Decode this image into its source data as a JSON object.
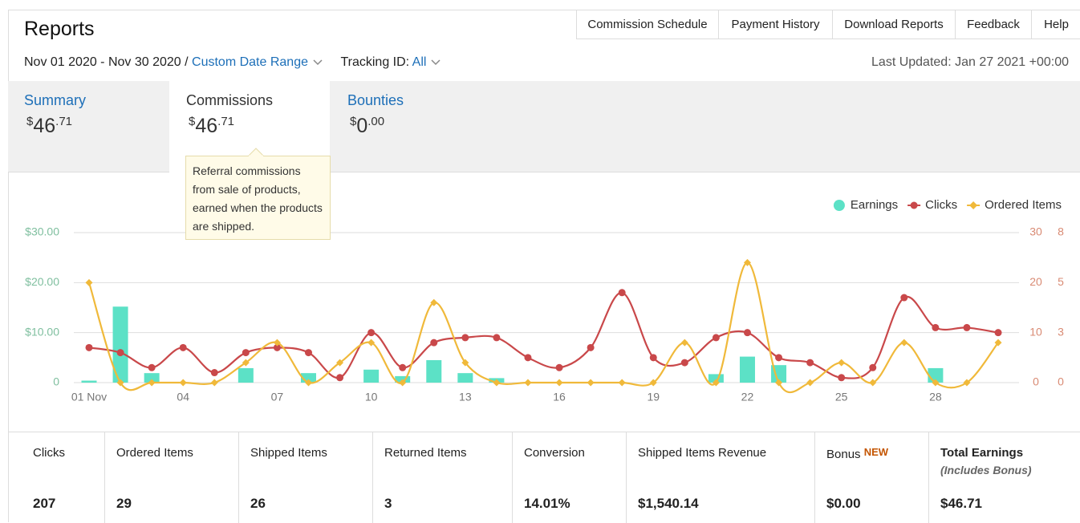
{
  "header": {
    "title": "Reports",
    "nav": [
      "Commission Schedule",
      "Payment History",
      "Download Reports",
      "Feedback",
      "Help"
    ],
    "date_range": "Nov 01 2020 - Nov 30 2020 /",
    "custom_range": "Custom Date Range",
    "tracking_label": "Tracking ID:",
    "tracking_value": "All",
    "last_updated": "Last Updated: Jan 27 2021 +00:00"
  },
  "tabs": [
    {
      "name": "Summary",
      "currency": "$",
      "whole": "46",
      "fraction": ".71"
    },
    {
      "name": "Commissions",
      "currency": "$",
      "whole": "46",
      "fraction": ".71"
    },
    {
      "name": "Bounties",
      "currency": "$",
      "whole": "0",
      "fraction": ".00"
    }
  ],
  "tooltip": "Referral commissions from sale of products, earned when the products are shipped.",
  "chart_data": {
    "type": "line",
    "categories": [
      "01 Nov",
      null,
      null,
      "04",
      null,
      null,
      "07",
      null,
      null,
      "10",
      null,
      null,
      "13",
      null,
      null,
      "16",
      null,
      null,
      "19",
      null,
      null,
      "22",
      null,
      null,
      "25",
      null,
      null,
      "28",
      null,
      null
    ],
    "series": [
      {
        "name": "Earnings",
        "type": "bar",
        "axis": "y",
        "color": "#5ce1c6",
        "marker": "circle",
        "values": [
          0.4,
          15.2,
          1.9,
          0,
          0,
          2.9,
          0,
          1.9,
          0,
          2.6,
          1.3,
          4.5,
          1.9,
          0.9,
          0,
          0,
          0,
          0,
          0,
          0,
          1.7,
          5.2,
          3.5,
          0,
          0,
          0,
          0,
          2.9,
          0,
          0
        ]
      },
      {
        "name": "Clicks",
        "type": "line",
        "axis": "y2",
        "color": "#c9484a",
        "marker": "circle",
        "values": [
          7,
          6,
          3,
          7,
          2,
          6,
          7,
          6,
          1,
          10,
          3,
          8,
          9,
          9,
          5,
          3,
          7,
          18,
          5,
          4,
          9,
          10,
          5,
          4,
          1,
          3,
          17,
          11,
          11,
          10
        ]
      },
      {
        "name": "Ordered Items",
        "type": "line",
        "axis": "y3",
        "color": "#f0b93a",
        "marker": "diamond",
        "values": [
          5,
          0,
          0,
          0,
          0,
          1,
          2,
          0,
          1,
          2,
          0,
          4,
          1,
          0,
          0,
          0,
          0,
          0,
          0,
          2,
          0,
          6,
          0,
          0,
          1,
          0,
          2,
          0,
          0,
          2
        ]
      }
    ],
    "ylim": [
      0,
      30
    ],
    "yticks": [
      0,
      {
        "value": 10,
        "label": "$10.00"
      },
      {
        "value": 20,
        "label": "$20.00"
      },
      {
        "value": 30,
        "label": "$30.00"
      }
    ],
    "y2lim": [
      0,
      30
    ],
    "y2ticks": [
      0,
      10,
      20,
      30
    ],
    "y3lim": [
      0,
      7.5
    ],
    "y3ticks": [
      0,
      {
        "value": 2.5,
        "label": "3"
      },
      5,
      {
        "value": 7.5,
        "label": "8"
      }
    ],
    "grid": true,
    "legend": "top-right"
  },
  "stats": [
    {
      "label": "Clicks",
      "value": "207"
    },
    {
      "label": "Ordered Items",
      "value": "29"
    },
    {
      "label": "Shipped Items",
      "value": "26"
    },
    {
      "label": "Returned Items",
      "value": "3"
    },
    {
      "label": "Conversion",
      "value": "14.01%"
    },
    {
      "label": "Shipped Items Revenue",
      "value": "$1,540.14"
    },
    {
      "label": "Bonus",
      "badge": "NEW",
      "value": "$0.00"
    },
    {
      "label": "Total Earnings",
      "note": "(Includes Bonus)",
      "value": "$46.71"
    }
  ]
}
